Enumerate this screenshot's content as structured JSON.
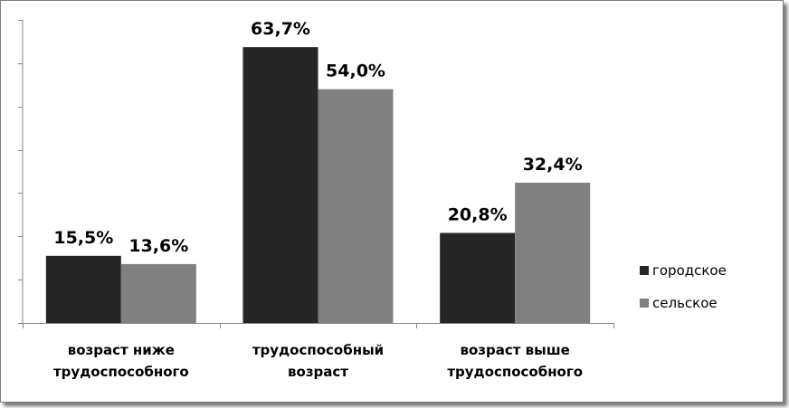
{
  "chart_data": {
    "type": "bar",
    "categories": [
      [
        "возраст ниже",
        "трудоспособного"
      ],
      [
        "трудоспособный",
        "возраст"
      ],
      [
        "возраст выше",
        "трудоспособного"
      ]
    ],
    "series": [
      {
        "name": "городское",
        "values": [
          15.5,
          63.7,
          20.8
        ],
        "labels": [
          "15,5%",
          "63,7%",
          "20,8%"
        ]
      },
      {
        "name": "сельское",
        "values": [
          13.6,
          54.0,
          32.4
        ],
        "labels": [
          "13,6%",
          "54,0%",
          "32,4%"
        ]
      }
    ],
    "ylim": [
      0,
      70
    ],
    "grid": false,
    "legend_position": "right",
    "colors": {
      "городское": "#262626",
      "сельское": "#808080"
    }
  }
}
